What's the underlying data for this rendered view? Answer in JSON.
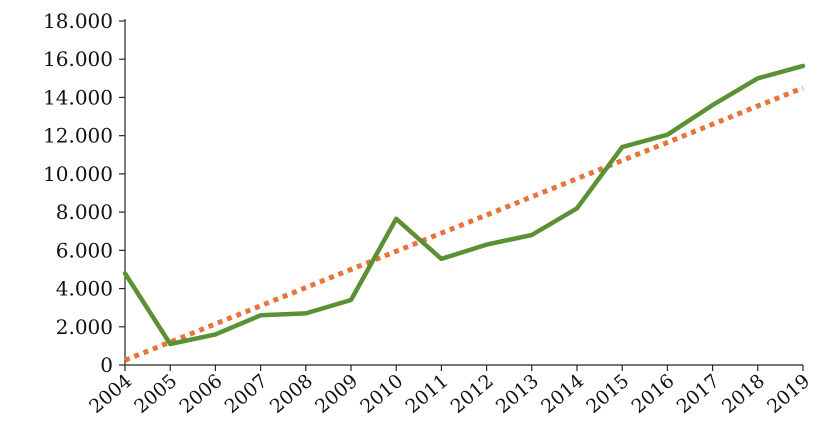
{
  "chart_data": {
    "type": "line",
    "x": [
      "2004",
      "2005",
      "2006",
      "2007",
      "2008",
      "2009",
      "2010",
      "2011",
      "2012",
      "2013",
      "2014",
      "2015",
      "2016",
      "2017",
      "2018",
      "2019"
    ],
    "series": [
      {
        "values": [
          4800,
          1100,
          1600,
          2600,
          2700,
          3400,
          7650,
          5550,
          6300,
          6800,
          8200,
          11400,
          12050,
          13600,
          15000,
          15650
        ],
        "color": "#5b9135",
        "style": "solid"
      },
      {
        "values": [
          250,
          1200,
          2150,
          3100,
          4050,
          5000,
          5950,
          6900,
          7850,
          8800,
          9750,
          10700,
          11650,
          12600,
          13550,
          14500
        ],
        "color": "#e8743b",
        "style": "dotted"
      }
    ],
    "ylim": [
      0,
      18000
    ],
    "yticks": [
      0,
      2000,
      4000,
      6000,
      8000,
      10000,
      12000,
      14000,
      16000,
      18000
    ],
    "ytick_labels": [
      "0",
      "2.000",
      "4.000",
      "6.000",
      "8.000",
      "10.000",
      "12.000",
      "14.000",
      "16.000",
      "18.000"
    ],
    "grid": false,
    "legend": "none"
  }
}
